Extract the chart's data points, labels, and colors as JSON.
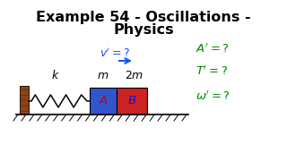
{
  "title_line1": "Example 54 - Oscillations -",
  "title_line2": "Physics",
  "bg_color": "#ffffff",
  "title_color": "#000000",
  "title_fontsize": 11.5,
  "wall_color": "#8B4513",
  "block_A_color": "#3355cc",
  "block_B_color": "#cc2222",
  "label_k": "$k$",
  "label_m": "$m$",
  "label_2m": "$2m$",
  "label_A": "$A$",
  "label_B": "$B$",
  "arrow_color": "#1155ff",
  "right_label_color": "#008800",
  "label_A_color": "#cc0000",
  "label_B_color": "#1111cc"
}
